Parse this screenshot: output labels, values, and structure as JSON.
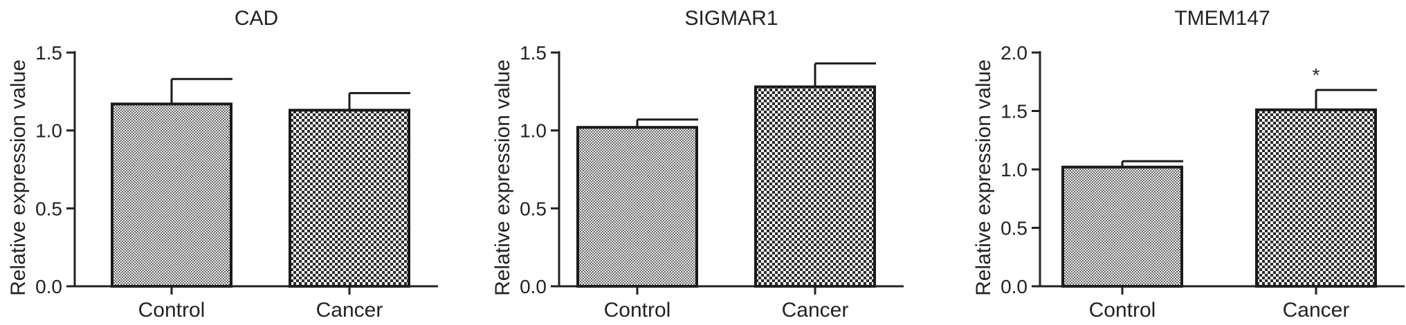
{
  "chart_data": [
    {
      "type": "bar",
      "title": "CAD",
      "ylabel": "Relative expression value",
      "xlabel": "",
      "categories": [
        "Control",
        "Cancer"
      ],
      "values": [
        1.17,
        1.13
      ],
      "errors": [
        0.16,
        0.11
      ],
      "ylim": [
        0,
        1.5
      ],
      "yticks": [
        "0.0",
        "0.5",
        "1.0",
        "1.5"
      ],
      "annotations": [
        "",
        ""
      ]
    },
    {
      "type": "bar",
      "title": "SIGMAR1",
      "ylabel": "Relative expression value",
      "xlabel": "",
      "categories": [
        "Control",
        "Cancer"
      ],
      "values": [
        1.02,
        1.28
      ],
      "errors": [
        0.05,
        0.15
      ],
      "ylim": [
        0,
        1.5
      ],
      "yticks": [
        "0.0",
        "0.5",
        "1.0",
        "1.5"
      ],
      "annotations": [
        "",
        ""
      ]
    },
    {
      "type": "bar",
      "title": "TMEM147",
      "ylabel": "Relative expression value",
      "xlabel": "",
      "categories": [
        "Control",
        "Cancer"
      ],
      "values": [
        1.02,
        1.51
      ],
      "errors": [
        0.05,
        0.17
      ],
      "ylim": [
        0,
        2.0
      ],
      "yticks": [
        "0.0",
        "0.5",
        "1.0",
        "1.5",
        "2.0"
      ],
      "annotations": [
        "",
        "*"
      ]
    }
  ]
}
